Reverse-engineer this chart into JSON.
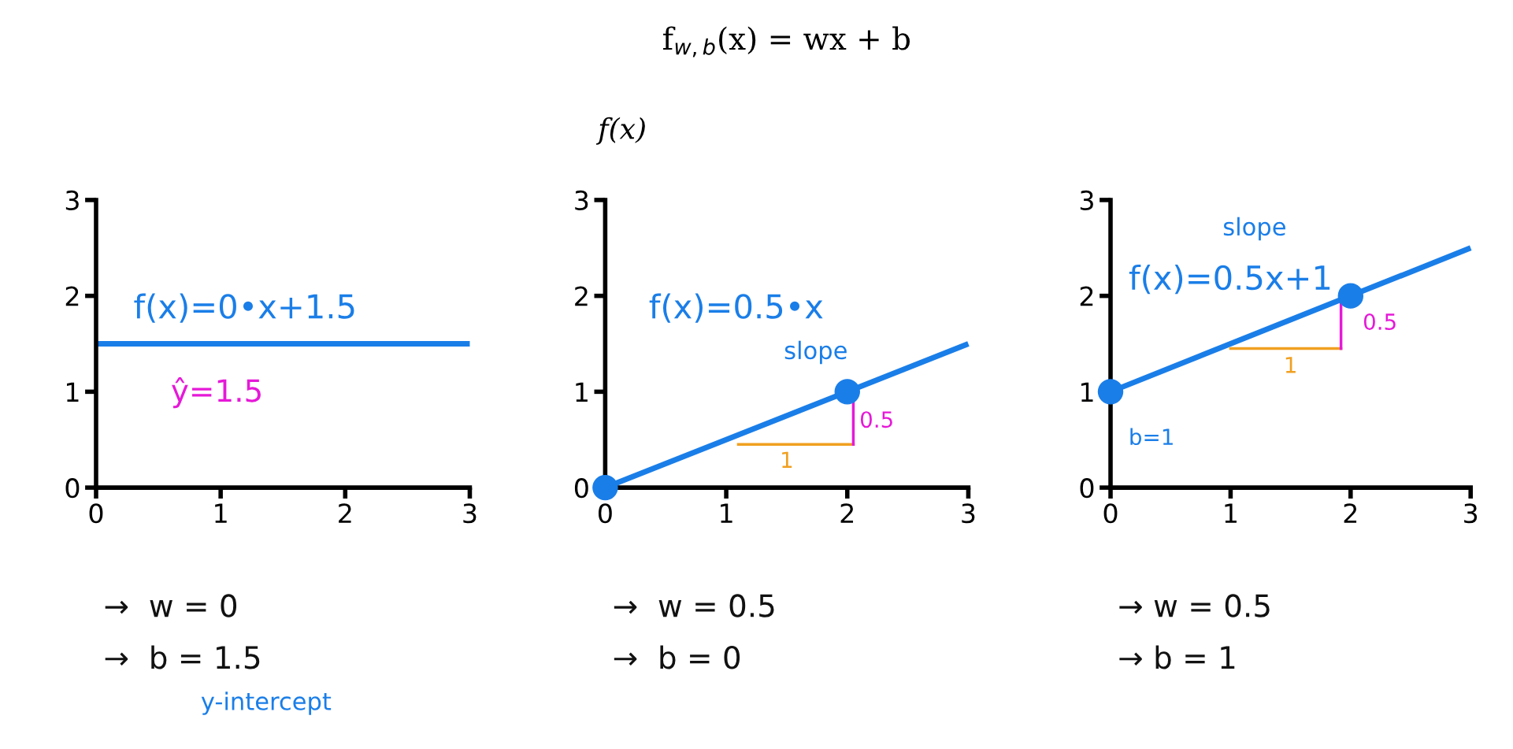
{
  "chart_data": [
    {
      "type": "line",
      "xlim": [
        0,
        3
      ],
      "ylim": [
        0,
        3
      ],
      "xticks": [
        0,
        1,
        2,
        3
      ],
      "yticks": [
        0,
        1,
        2,
        3
      ],
      "grid": false,
      "legend": false,
      "series": [
        {
          "color": "#1a7ee8",
          "x": [
            0,
            3
          ],
          "values": [
            1.5,
            1.5
          ]
        }
      ],
      "annotations": [
        "f(x)=0•x+1.5",
        "ŷ=1.5",
        "→  w = 0",
        "→  b = 1.5",
        "y-intercept"
      ]
    },
    {
      "type": "line",
      "title": "f$_{w,b}$(x) = wx + b",
      "ylabel": "f(x)",
      "xlim": [
        0,
        3
      ],
      "ylim": [
        0,
        3
      ],
      "xticks": [
        0,
        1,
        2,
        3
      ],
      "yticks": [
        0,
        1,
        2,
        3
      ],
      "grid": false,
      "legend": false,
      "series": [
        {
          "color": "#1a7ee8",
          "x": [
            0,
            3
          ],
          "values": [
            0,
            1.5
          ]
        },
        {
          "type": "scatter",
          "color": "#1a7ee8",
          "x": [
            0,
            2
          ],
          "values": [
            0,
            1
          ],
          "marker": "circle"
        }
      ],
      "annotations": [
        "f(x)=0.5•x",
        "slope",
        "1",
        "0.5",
        "→  w = 0.5",
        "→  b = 0"
      ]
    },
    {
      "type": "line",
      "xlim": [
        0,
        3
      ],
      "ylim": [
        0,
        3
      ],
      "xticks": [
        0,
        1,
        2,
        3
      ],
      "yticks": [
        0,
        1,
        2,
        3
      ],
      "grid": false,
      "legend": false,
      "series": [
        {
          "color": "#1a7ee8",
          "x": [
            0,
            3
          ],
          "values": [
            1,
            2.5
          ]
        },
        {
          "type": "scatter",
          "color": "#1a7ee8",
          "x": [
            0,
            2
          ],
          "values": [
            1,
            2
          ],
          "marker": "circle"
        }
      ],
      "annotations": [
        "slope",
        "f(x)=0.5x+1",
        "1",
        "0.5",
        "b=1",
        "→ w = 0.5",
        "→ b = 1"
      ]
    }
  ]
}
